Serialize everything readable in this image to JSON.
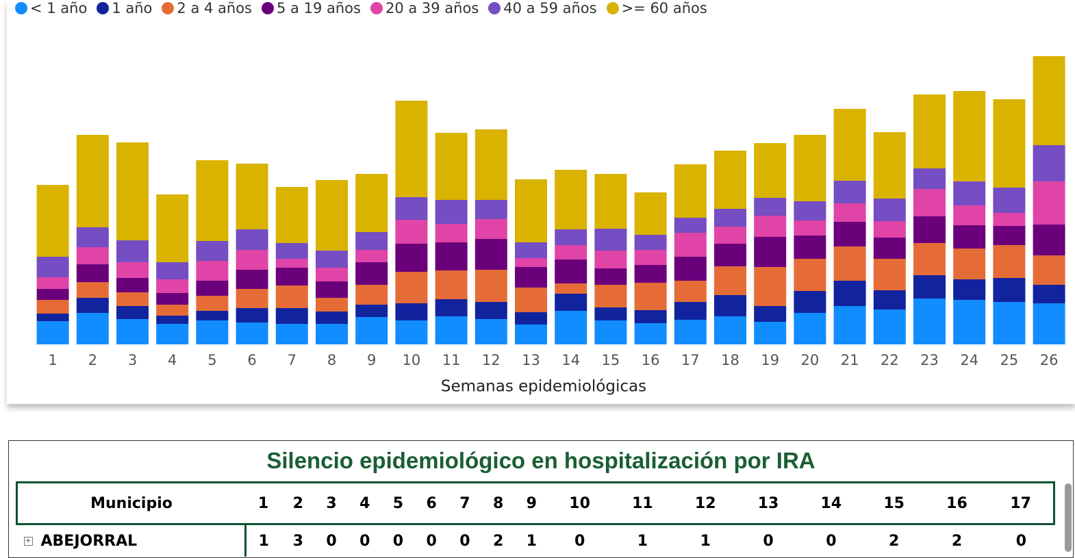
{
  "chart_data": {
    "type": "bar",
    "stacked": true,
    "x_label": "Semanas epidemiológicas",
    "categories": [
      "1",
      "2",
      "3",
      "4",
      "5",
      "6",
      "7",
      "8",
      "9",
      "10",
      "11",
      "12",
      "13",
      "14",
      "15",
      "16",
      "17",
      "18",
      "19",
      "20",
      "21",
      "22",
      "23",
      "24",
      "25",
      "26"
    ],
    "ylim": [
      0,
      430
    ],
    "series": [
      {
        "name": "< 1 año",
        "color": "#118DFF",
        "values": [
          34,
          46,
          37,
          30,
          35,
          32,
          30,
          30,
          40,
          35,
          41,
          37,
          29,
          49,
          35,
          31,
          36,
          41,
          33,
          46,
          56,
          51,
          67,
          65,
          62,
          60
        ]
      },
      {
        "name": "1 año",
        "color": "#12239E",
        "values": [
          11,
          22,
          19,
          12,
          14,
          21,
          23,
          18,
          18,
          25,
          25,
          25,
          18,
          25,
          19,
          19,
          26,
          31,
          23,
          32,
          37,
          28,
          34,
          30,
          35,
          27
        ]
      },
      {
        "name": "2 a 4 años",
        "color": "#E66C37",
        "values": [
          20,
          23,
          20,
          16,
          22,
          28,
          33,
          20,
          29,
          46,
          42,
          47,
          36,
          15,
          33,
          40,
          31,
          42,
          57,
          47,
          50,
          46,
          47,
          45,
          48,
          43
        ]
      },
      {
        "name": "5 a 19 años",
        "color": "#6B007B",
        "values": [
          16,
          26,
          21,
          17,
          22,
          28,
          26,
          24,
          33,
          41,
          41,
          45,
          30,
          35,
          24,
          26,
          35,
          33,
          44,
          34,
          36,
          31,
          39,
          34,
          28,
          45
        ]
      },
      {
        "name": "20 a 39 años",
        "color": "#E044A7",
        "values": [
          17,
          25,
          23,
          20,
          29,
          29,
          13,
          20,
          18,
          35,
          27,
          29,
          13,
          21,
          26,
          22,
          35,
          25,
          31,
          22,
          27,
          24,
          40,
          29,
          19,
          63
        ]
      },
      {
        "name": "40 a 59 años",
        "color": "#744EC2",
        "values": [
          30,
          29,
          32,
          25,
          29,
          30,
          23,
          25,
          26,
          33,
          35,
          28,
          23,
          23,
          32,
          22,
          22,
          26,
          26,
          28,
          33,
          33,
          30,
          35,
          37,
          53
        ]
      },
      {
        "name": ">= 60 años",
        "color": "#D9B300",
        "values": [
          105,
          135,
          143,
          99,
          118,
          96,
          82,
          103,
          85,
          141,
          98,
          103,
          92,
          87,
          80,
          62,
          78,
          85,
          80,
          97,
          105,
          97,
          108,
          132,
          129,
          130
        ]
      }
    ]
  },
  "table": {
    "title": "Silencio epidemiológico en hospitalización por IRA",
    "header": [
      "Municipio",
      "1",
      "2",
      "3",
      "4",
      "5",
      "6",
      "7",
      "8",
      "9",
      "10",
      "11",
      "12",
      "13",
      "14",
      "15",
      "16",
      "17"
    ],
    "rows": [
      [
        "ABEJORRAL",
        "1",
        "3",
        "0",
        "0",
        "0",
        "0",
        "0",
        "2",
        "1",
        "0",
        "1",
        "1",
        "0",
        "0",
        "2",
        "2",
        "0"
      ]
    ]
  }
}
